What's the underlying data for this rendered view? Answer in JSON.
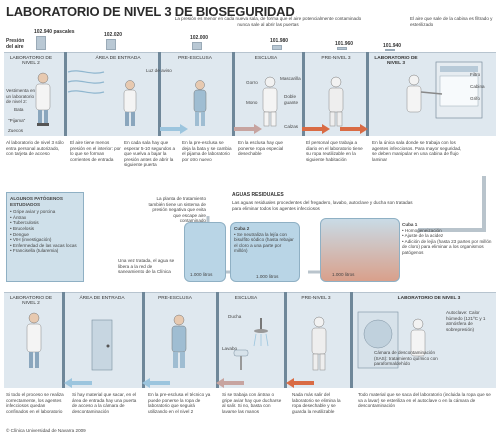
{
  "title": "LABORATORIO DE NIVEL 3 DE BIOSEGURIDAD",
  "pressure": {
    "label": "Presión del aire",
    "note": "La presión es menor en cada nueva sala, de forma que el aire potencialmente contaminado nunca sale al abrir las puertas",
    "values": [
      "102.940 pascales",
      "102.020",
      "102.000",
      "101.980",
      "101.960",
      "101.940"
    ]
  },
  "air_note": "El aire que sale de la cabina es filtrado y esterilizado",
  "rooms_top": [
    "LABORATORIO DE NIVEL 2",
    "ÁREA DE ENTRADA",
    "PRE-ESCLUSA",
    "ESCLUSA",
    "PRE-NIVEL 3",
    "LABORATORIO DE NIVEL 3"
  ],
  "labels_top": {
    "vestimenta": "Vestimenta en un laboratorio de nivel 2:",
    "bata": "Bata",
    "pijama": "\"Pijama\"",
    "zuecos": "Zuecos",
    "luz_aviso": "Luz de aviso",
    "gorro": "Gorro",
    "mono": "Mono",
    "mascarilla": "Mascarilla",
    "doble_guante": "Doble guante",
    "calzas": "Calzas",
    "filtro": "Filtro",
    "cabina": "Cabina",
    "grifo": "Grifo"
  },
  "desc_top": [
    "Al laboratorio de nivel 3 sólo entra personal autorizado, con tarjeta de acceso",
    "El aire tiene menos presión en el interior: por lo que se forman corrientes de entrada",
    "En cada sala hay que esperar 5-10 segundos a que vuelva a bajar la presión antes de abrir la siguiente puerta",
    "En la pre-esclusa se deja la bata y se cambia el pijama de laboratorio por otro nuevo",
    "En la esclusa hay que ponerse ropa especial desechable",
    "El personal que trabaja a diario en el laboratorio tiene su ropa reutilizable en la siguiente habitación",
    "En la única sala donde se trabaja con los agentes infecciosos. Para mayor seguridad, se deben manipular en una cabina de flujo laminar"
  ],
  "pathogens": {
    "title": "ALGUNOS PATÓGENOS ESTUDIADOS",
    "items": [
      "Gripe aviar y porcina",
      "Ántrax",
      "Tuberculosis",
      "Brucelosis",
      "Dengue",
      "VIH (investigación)",
      "Enfermedad de las vacas locas",
      "Francisella (tularemia)"
    ]
  },
  "waste": {
    "title": "AGUAS RESIDUALES",
    "desc": "Las aguas residuales procedentes del fregadero, lavabo, autoclave y ducha son tratadas para eliminar todos los agentes infecciosos",
    "plant_note": "La planta de tratamiento también tiene un sistema de presión negativa que evita que escape aire contaminado",
    "treated_note": "Una vez tratada, el agua se libera a la red de saneamiento de la Clínica",
    "cuba2_title": "Cuba 2",
    "cuba2_items": [
      "Se neutraliza la lejía con bisulfito sódico (hasta rebajar el cloro a una parte por millón)"
    ],
    "cuba2_volume": "1.000 litros",
    "cuba1_title": "Cuba 1",
    "cuba1_items": [
      "Homogeneización",
      "Ajuste de la acidez",
      "Adición de lejía (hasta 23 partes por millón de cloro) para eliminar a los organismos patógenos"
    ],
    "cuba1_volume": "1.000 litros",
    "tank_left_volume": "1.000 litros"
  },
  "rooms_bottom": [
    "LABORATORIO DE NIVEL 2",
    "ÁREA DE ENTRADA",
    "PRE-ESCLUSA",
    "ESCLUSA",
    "PRE-NIVEL 3",
    "LABORATORIO DE NIVEL 3"
  ],
  "labels_bottom": {
    "ducha": "Ducha",
    "lavabo": "Lavabo",
    "autoclave": "Autoclave: Calor húmedo (121ºC y 1 atmósfera de sobrepresión)",
    "camara": "Cámara de descontaminación (SAS): tratamiento químico con paraformaldehído"
  },
  "desc_bottom": [
    "Si todo el proceso se realiza correctamente, los agentes infecciosos quedan confinados en el laboratorio",
    "Si hay material que sacar, en el área de entrada hay una puerta de acceso a la cámara de descontaminación",
    "En la pre-esclusa el técnico ya puede ponerse la ropa de laboratorio que seguirá utilizando en el nivel 2",
    "Si se trabaja con ántrax o gripe aviar hay que ducharse al salir. Si no, basta con lavarse las manos",
    "Nada más salir del laboratorio se elimina la ropa desechable y se guarda la reutilizable",
    "Todo material que se saca del laboratorio (incluida la ropa que se va a lavar) se esteriliza en el autoclave o en la cámara de descontaminación"
  ],
  "credit": "© Clínica Universidad de Navarra 2009",
  "colors": {
    "band": "#dfe8ef",
    "accent_blue": "#9cc5de",
    "accent_red": "#d96b44",
    "water": "#b9d5e6"
  }
}
